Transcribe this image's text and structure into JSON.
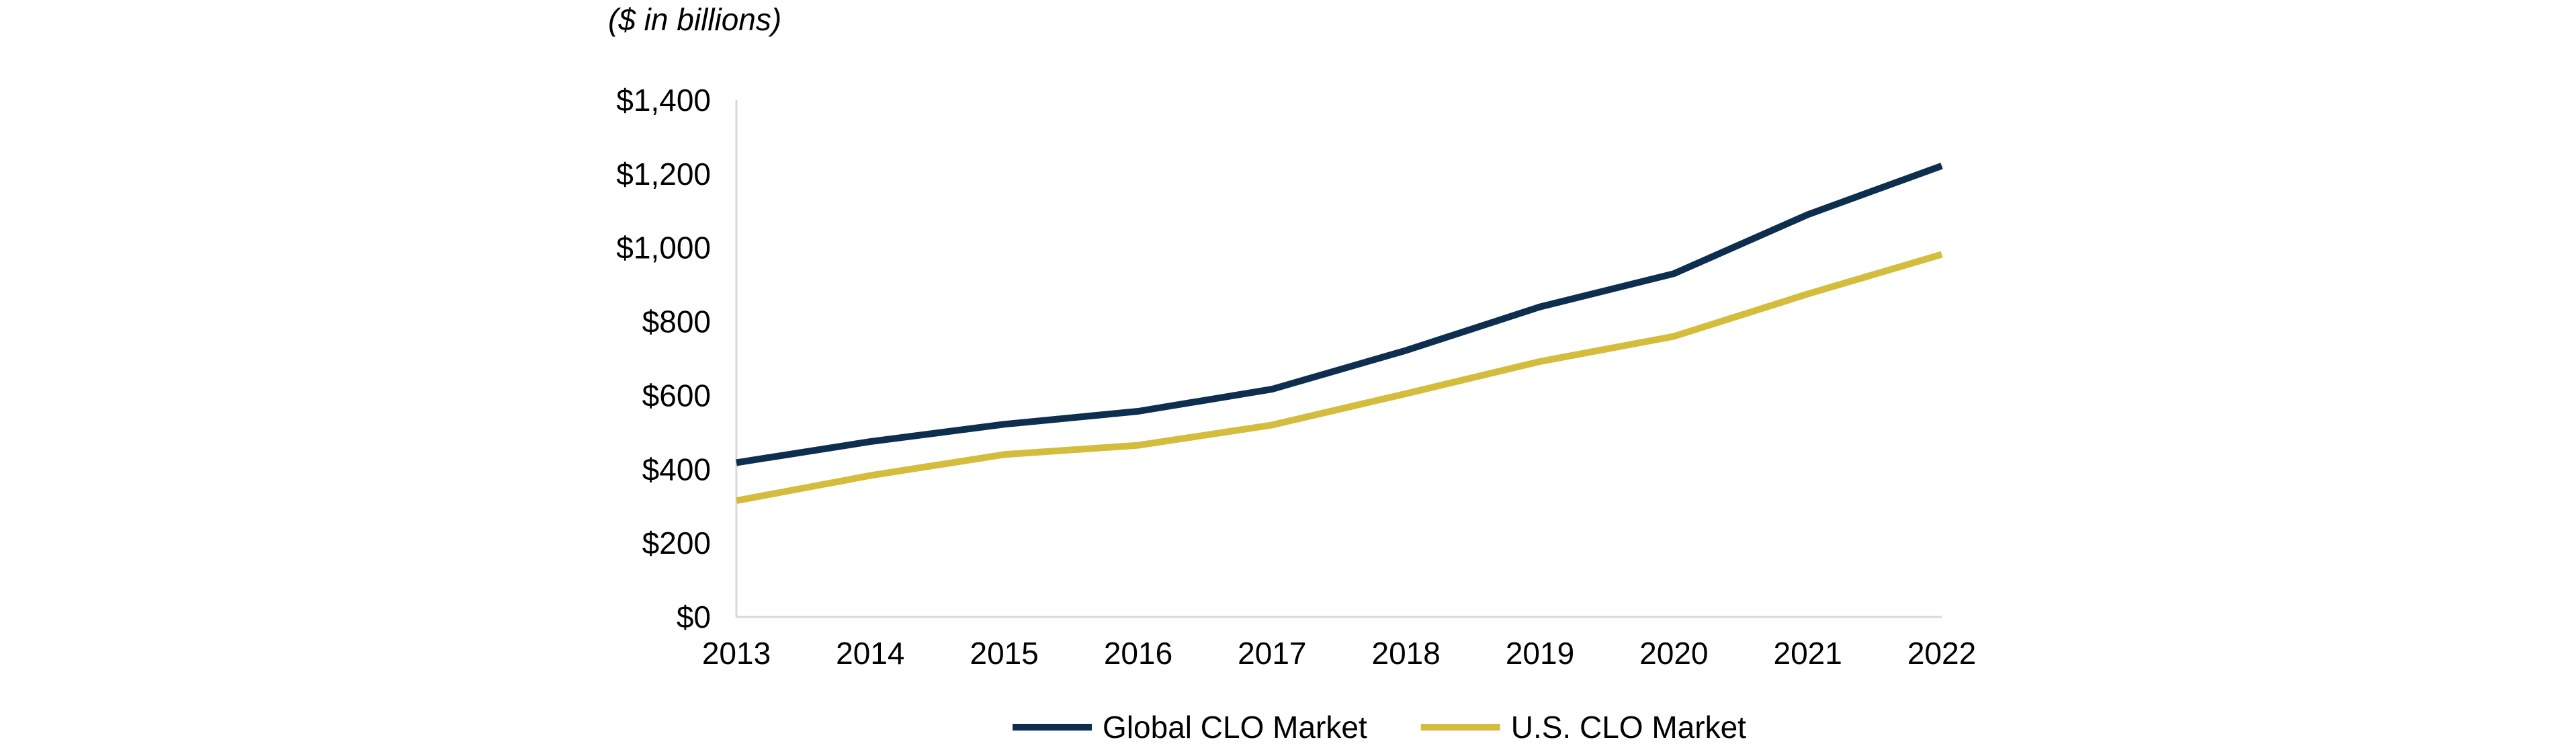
{
  "chart_data": {
    "type": "line",
    "unit_label": "($ in billions)",
    "x": [
      "2013",
      "2014",
      "2015",
      "2016",
      "2017",
      "2018",
      "2019",
      "2020",
      "2021",
      "2022"
    ],
    "y_ticks": [
      "$0",
      "$200",
      "$400",
      "$600",
      "$800",
      "$1,000",
      "$1,200",
      "$1,400"
    ],
    "ylim": [
      0,
      1400
    ],
    "y_step": 200,
    "grid": false,
    "legend_position": "bottom",
    "series": [
      {
        "name": "Global CLO Market",
        "color": "#0d2e4e",
        "values": [
          418,
          475,
          522,
          557,
          617,
          722,
          840,
          930,
          1090,
          1222
        ]
      },
      {
        "name": "U.S. CLO Market",
        "color": "#d4bd3c",
        "values": [
          315,
          383,
          440,
          465,
          520,
          605,
          692,
          760,
          875,
          982
        ]
      }
    ]
  }
}
